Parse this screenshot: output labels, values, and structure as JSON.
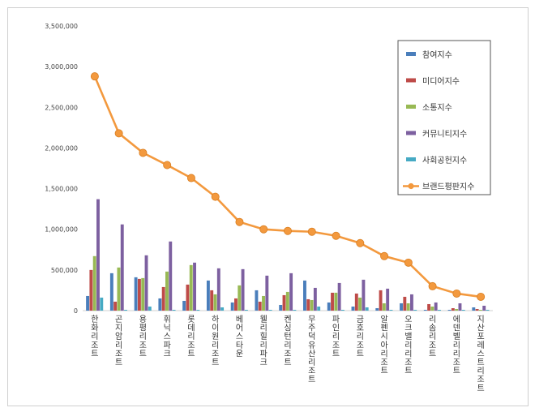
{
  "chart_data": {
    "type": "bar",
    "categories": [
      "한화리조트",
      "곤지암리조트",
      "용평리조트",
      "휘닉스파크",
      "롯데리조트",
      "하이원리조트",
      "베어스타운",
      "웰리힐리파크",
      "켄싱턴리조트",
      "무주덕유산리조트",
      "파인리조트",
      "금호리조트",
      "알펜시아리조트",
      "오크밸리리조트",
      "리솜리조트",
      "에덴벨리리조트",
      "지산포레스트리조트"
    ],
    "series": [
      {
        "name": "참여지수",
        "type": "bar",
        "color": "#4a7ebb",
        "values": [
          180000,
          460000,
          410000,
          150000,
          120000,
          370000,
          100000,
          250000,
          70000,
          370000,
          100000,
          50000,
          30000,
          90000,
          10000,
          10000,
          40000
        ]
      },
      {
        "name": "미디어지수",
        "type": "bar",
        "color": "#be4b48",
        "values": [
          500000,
          110000,
          390000,
          290000,
          320000,
          250000,
          150000,
          110000,
          190000,
          140000,
          220000,
          210000,
          250000,
          170000,
          80000,
          30000,
          20000
        ]
      },
      {
        "name": "소통지수",
        "type": "bar",
        "color": "#98b954",
        "values": [
          670000,
          530000,
          400000,
          480000,
          560000,
          200000,
          310000,
          180000,
          230000,
          130000,
          220000,
          160000,
          90000,
          90000,
          50000,
          20000,
          10000
        ]
      },
      {
        "name": "커뮤니티지수",
        "type": "bar",
        "color": "#7d60a0",
        "values": [
          1370000,
          1060000,
          680000,
          850000,
          590000,
          520000,
          510000,
          430000,
          460000,
          280000,
          340000,
          380000,
          270000,
          200000,
          100000,
          90000,
          60000
        ]
      },
      {
        "name": "사회공헌지수",
        "type": "bar",
        "color": "#46aac4",
        "values": [
          160000,
          10000,
          50000,
          10000,
          10000,
          40000,
          10000,
          10000,
          10000,
          50000,
          10000,
          40000,
          10000,
          10000,
          10000,
          10000,
          10000
        ]
      },
      {
        "name": "브랜드평판지수",
        "type": "line",
        "color": "#f3993e",
        "values": [
          2880000,
          2180000,
          1940000,
          1790000,
          1630000,
          1400000,
          1090000,
          1000000,
          980000,
          970000,
          920000,
          830000,
          670000,
          590000,
          300000,
          210000,
          170000
        ]
      }
    ],
    "yticks": [
      "0",
      "500,000",
      "1,000,000",
      "1,500,000",
      "2,000,000",
      "2,500,000",
      "3,000,000",
      "3,500,000"
    ],
    "ylim": [
      0,
      3500000
    ],
    "legend_position": "right",
    "grid": false
  }
}
